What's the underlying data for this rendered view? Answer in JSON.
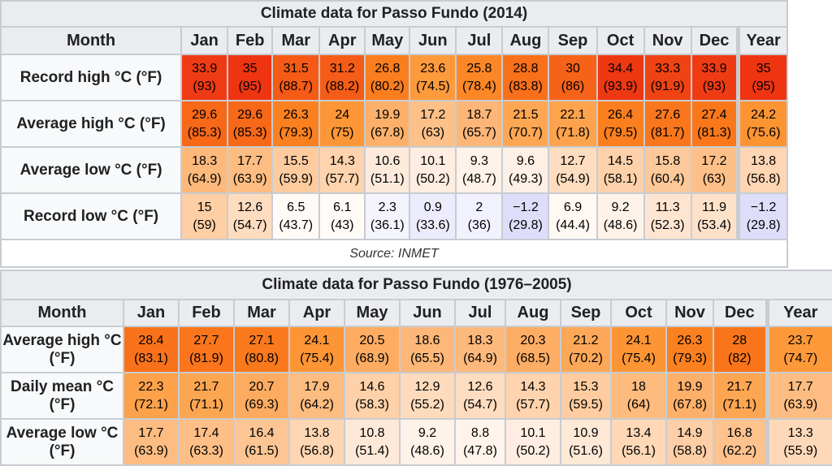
{
  "table1": {
    "caption": "Climate data for Passo Fundo (2014)",
    "month_header": "Month",
    "months": [
      "Jan",
      "Feb",
      "Mar",
      "Apr",
      "May",
      "Jun",
      "Jul",
      "Aug",
      "Sep",
      "Oct",
      "Nov",
      "Dec",
      "Year"
    ],
    "rows": [
      {
        "label": "Record high °C (°F)",
        "cells": [
          {
            "c": "33.9",
            "f": "(93)",
            "bg": "#ef3b14",
            "fg": "#000"
          },
          {
            "c": "35",
            "f": "(95)",
            "bg": "#ee3411",
            "fg": "#000"
          },
          {
            "c": "31.5",
            "f": "(88.7)",
            "bg": "#f55a16",
            "fg": "#000"
          },
          {
            "c": "31.2",
            "f": "(88.2)",
            "bg": "#f55c17",
            "fg": "#000"
          },
          {
            "c": "26.8",
            "f": "(80.2)",
            "bg": "#fb7d1e",
            "fg": "#000"
          },
          {
            "c": "23.6",
            "f": "(74.5)",
            "bg": "#fd9a3c",
            "fg": "#000"
          },
          {
            "c": "25.8",
            "f": "(78.4)",
            "bg": "#fc8726",
            "fg": "#000"
          },
          {
            "c": "28.8",
            "f": "(83.8)",
            "bg": "#f8701a",
            "fg": "#000"
          },
          {
            "c": "30",
            "f": "(86)",
            "bg": "#f66318",
            "fg": "#000"
          },
          {
            "c": "34.4",
            "f": "(93.9)",
            "bg": "#ee3812",
            "fg": "#000"
          },
          {
            "c": "33.3",
            "f": "(91.9)",
            "bg": "#f04313",
            "fg": "#000"
          },
          {
            "c": "33.9",
            "f": "(93)",
            "bg": "#ef3b14",
            "fg": "#000"
          },
          {
            "c": "35",
            "f": "(95)",
            "bg": "#ee3411",
            "fg": "#000"
          }
        ]
      },
      {
        "label": "Average high °C (°F)",
        "cells": [
          {
            "c": "29.6",
            "f": "(85.3)",
            "bg": "#f76819",
            "fg": "#000"
          },
          {
            "c": "29.6",
            "f": "(85.3)",
            "bg": "#f76819",
            "fg": "#000"
          },
          {
            "c": "26.3",
            "f": "(79.3)",
            "bg": "#fb8020",
            "fg": "#000"
          },
          {
            "c": "24",
            "f": "(75)",
            "bg": "#fd9636",
            "fg": "#000"
          },
          {
            "c": "19.9",
            "f": "(67.8)",
            "bg": "#fdb06a",
            "fg": "#000"
          },
          {
            "c": "17.2",
            "f": "(63)",
            "bg": "#fdc088",
            "fg": "#000"
          },
          {
            "c": "18.7",
            "f": "(65.7)",
            "bg": "#fdb677",
            "fg": "#000"
          },
          {
            "c": "21.5",
            "f": "(70.7)",
            "bg": "#fda754",
            "fg": "#000"
          },
          {
            "c": "22.1",
            "f": "(71.8)",
            "bg": "#fda34e",
            "fg": "#000"
          },
          {
            "c": "26.4",
            "f": "(79.5)",
            "bg": "#fb7f1f",
            "fg": "#000"
          },
          {
            "c": "27.6",
            "f": "(81.7)",
            "bg": "#fa761c",
            "fg": "#000"
          },
          {
            "c": "27.4",
            "f": "(81.3)",
            "bg": "#fa771c",
            "fg": "#000"
          },
          {
            "c": "24.2",
            "f": "(75.6)",
            "bg": "#fd9434",
            "fg": "#000"
          }
        ]
      },
      {
        "label": "Average low °C (°F)",
        "cells": [
          {
            "c": "18.3",
            "f": "(64.9)",
            "bg": "#fdb97c",
            "fg": "#000"
          },
          {
            "c": "17.7",
            "f": "(63.9)",
            "bg": "#fdbd82",
            "fg": "#000"
          },
          {
            "c": "15.5",
            "f": "(59.9)",
            "bg": "#fecb9e",
            "fg": "#000"
          },
          {
            "c": "14.3",
            "f": "(57.7)",
            "bg": "#fed3ad",
            "fg": "#000"
          },
          {
            "c": "10.6",
            "f": "(51.1)",
            "bg": "#feeadb",
            "fg": "#000"
          },
          {
            "c": "10.1",
            "f": "(50.2)",
            "bg": "#feede0",
            "fg": "#000"
          },
          {
            "c": "9.3",
            "f": "(48.7)",
            "bg": "#fff2e8",
            "fg": "#000"
          },
          {
            "c": "9.6",
            "f": "(49.3)",
            "bg": "#fff0e5",
            "fg": "#000"
          },
          {
            "c": "12.7",
            "f": "(54.9)",
            "bg": "#fedcbf",
            "fg": "#000"
          },
          {
            "c": "14.5",
            "f": "(58.1)",
            "bg": "#fed1aa",
            "fg": "#000"
          },
          {
            "c": "15.8",
            "f": "(60.4)",
            "bg": "#fec99a",
            "fg": "#000"
          },
          {
            "c": "17.2",
            "f": "(63)",
            "bg": "#fdc088",
            "fg": "#000"
          },
          {
            "c": "13.8",
            "f": "(56.8)",
            "bg": "#fed6b3",
            "fg": "#000"
          }
        ]
      },
      {
        "label": "Record low °C (°F)",
        "cells": [
          {
            "c": "15",
            "f": "(59)",
            "bg": "#fecea4",
            "fg": "#000"
          },
          {
            "c": "12.6",
            "f": "(54.7)",
            "bg": "#fedcc0",
            "fg": "#000"
          },
          {
            "c": "6.5",
            "f": "(43.7)",
            "bg": "#fffaf5",
            "fg": "#000"
          },
          {
            "c": "6.1",
            "f": "(43)",
            "bg": "#fffbf7",
            "fg": "#000"
          },
          {
            "c": "2.3",
            "f": "(36.1)",
            "bg": "#f4f4fe",
            "fg": "#000"
          },
          {
            "c": "0.9",
            "f": "(33.6)",
            "bg": "#ececfd",
            "fg": "#000"
          },
          {
            "c": "2",
            "f": "(36)",
            "bg": "#f2f2fe",
            "fg": "#000"
          },
          {
            "c": "−1.2",
            "f": "(29.8)",
            "bg": "#dedefb",
            "fg": "#000"
          },
          {
            "c": "6.9",
            "f": "(44.4)",
            "bg": "#fff8f3",
            "fg": "#000"
          },
          {
            "c": "9.2",
            "f": "(48.6)",
            "bg": "#fff2e8",
            "fg": "#000"
          },
          {
            "c": "11.3",
            "f": "(52.3)",
            "bg": "#fee5d1",
            "fg": "#000"
          },
          {
            "c": "11.9",
            "f": "(53.4)",
            "bg": "#fee1c9",
            "fg": "#000"
          },
          {
            "c": "−1.2",
            "f": "(29.8)",
            "bg": "#dedefb",
            "fg": "#000"
          }
        ]
      }
    ],
    "source": "Source: INMET"
  },
  "table2": {
    "caption": "Climate data for Passo Fundo (1976–2005)",
    "month_header": "Month",
    "months": [
      "Jan",
      "Feb",
      "Mar",
      "Apr",
      "May",
      "Jun",
      "Jul",
      "Aug",
      "Sep",
      "Oct",
      "Nov",
      "Dec",
      "Year"
    ],
    "rows": [
      {
        "label": "Average high °C (°F)",
        "cells": [
          {
            "c": "28.4",
            "f": "(83.1)",
            "bg": "#f9721b",
            "fg": "#000"
          },
          {
            "c": "27.7",
            "f": "(81.9)",
            "bg": "#fa751c",
            "fg": "#000"
          },
          {
            "c": "27.1",
            "f": "(80.8)",
            "bg": "#fa791d",
            "fg": "#000"
          },
          {
            "c": "24.1",
            "f": "(75.4)",
            "bg": "#fd9535",
            "fg": "#000"
          },
          {
            "c": "20.5",
            "f": "(68.9)",
            "bg": "#fdac62",
            "fg": "#000"
          },
          {
            "c": "18.6",
            "f": "(65.5)",
            "bg": "#fdb778",
            "fg": "#000"
          },
          {
            "c": "18.3",
            "f": "(64.9)",
            "bg": "#fdb97c",
            "fg": "#000"
          },
          {
            "c": "20.3",
            "f": "(68.5)",
            "bg": "#fdad64",
            "fg": "#000"
          },
          {
            "c": "21.2",
            "f": "(70.2)",
            "bg": "#fda858",
            "fg": "#000"
          },
          {
            "c": "24.1",
            "f": "(75.4)",
            "bg": "#fd9535",
            "fg": "#000"
          },
          {
            "c": "26.3",
            "f": "(79.3)",
            "bg": "#fb8020",
            "fg": "#000"
          },
          {
            "c": "28",
            "f": "(82)",
            "bg": "#f9741b",
            "fg": "#000"
          },
          {
            "c": "23.7",
            "f": "(74.7)",
            "bg": "#fd9939",
            "fg": "#000"
          }
        ]
      },
      {
        "label": "Daily mean °C (°F)",
        "cells": [
          {
            "c": "22.3",
            "f": "(72.1)",
            "bg": "#fda24b",
            "fg": "#000"
          },
          {
            "c": "21.7",
            "f": "(71.1)",
            "bg": "#fda652",
            "fg": "#000"
          },
          {
            "c": "20.7",
            "f": "(69.3)",
            "bg": "#fdab60",
            "fg": "#000"
          },
          {
            "c": "17.9",
            "f": "(64.2)",
            "bg": "#fdbc80",
            "fg": "#000"
          },
          {
            "c": "14.6",
            "f": "(58.3)",
            "bg": "#fed1a9",
            "fg": "#000"
          },
          {
            "c": "12.9",
            "f": "(55.2)",
            "bg": "#fedbbd",
            "fg": "#000"
          },
          {
            "c": "12.6",
            "f": "(54.7)",
            "bg": "#fedcc0",
            "fg": "#000"
          },
          {
            "c": "14.3",
            "f": "(57.7)",
            "bg": "#fed3ad",
            "fg": "#000"
          },
          {
            "c": "15.3",
            "f": "(59.5)",
            "bg": "#fecca0",
            "fg": "#000"
          },
          {
            "c": "18",
            "f": "(64)",
            "bg": "#fdbb7e",
            "fg": "#000"
          },
          {
            "c": "19.9",
            "f": "(67.8)",
            "bg": "#fdb06a",
            "fg": "#000"
          },
          {
            "c": "21.7",
            "f": "(71.1)",
            "bg": "#fda652",
            "fg": "#000"
          },
          {
            "c": "17.7",
            "f": "(63.9)",
            "bg": "#fdbd82",
            "fg": "#000"
          }
        ]
      },
      {
        "label": "Average low °C (°F)",
        "cells": [
          {
            "c": "17.7",
            "f": "(63.9)",
            "bg": "#fdbd82",
            "fg": "#000"
          },
          {
            "c": "17.4",
            "f": "(63.3)",
            "bg": "#fdbf86",
            "fg": "#000"
          },
          {
            "c": "16.4",
            "f": "(61.5)",
            "bg": "#fdc594",
            "fg": "#000"
          },
          {
            "c": "13.8",
            "f": "(56.8)",
            "bg": "#fed6b3",
            "fg": "#000"
          },
          {
            "c": "10.8",
            "f": "(51.4)",
            "bg": "#fee9d8",
            "fg": "#000"
          },
          {
            "c": "9.2",
            "f": "(48.6)",
            "bg": "#fff2e8",
            "fg": "#000"
          },
          {
            "c": "8.8",
            "f": "(47.8)",
            "bg": "#fff4eb",
            "fg": "#000"
          },
          {
            "c": "10.1",
            "f": "(50.2)",
            "bg": "#feede0",
            "fg": "#000"
          },
          {
            "c": "10.9",
            "f": "(51.6)",
            "bg": "#fee8d6",
            "fg": "#000"
          },
          {
            "c": "13.4",
            "f": "(56.1)",
            "bg": "#fed8b7",
            "fg": "#000"
          },
          {
            "c": "14.9",
            "f": "(58.8)",
            "bg": "#fecfa6",
            "fg": "#000"
          },
          {
            "c": "16.8",
            "f": "(62.2)",
            "bg": "#fdc28e",
            "fg": "#000"
          },
          {
            "c": "13.3",
            "f": "(55.9)",
            "bg": "#fed9b9",
            "fg": "#000"
          }
        ]
      }
    ]
  }
}
